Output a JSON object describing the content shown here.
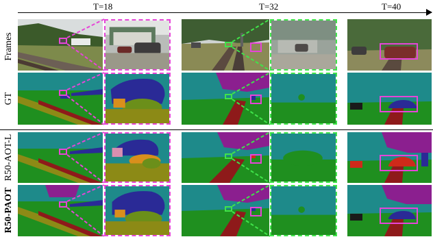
{
  "timesteps": [
    {
      "label": "T=18"
    },
    {
      "label": "T=32"
    },
    {
      "label": "T=40"
    }
  ],
  "rows": [
    {
      "label": "Frames",
      "bold": false
    },
    {
      "label": "GT",
      "bold": false
    },
    {
      "label": "R50-AOT-L",
      "bold": false
    },
    {
      "label": "R50-PAOT",
      "bold": true
    }
  ],
  "colors": {
    "sky_seg": "#1e8a8a",
    "ground_seg": "#1f8f1f",
    "tree_seg": "#8b1f8f",
    "road_seg": "#8e1a1a",
    "car_seg": "#2a2a96",
    "car_red_seg": "#cf2a1a",
    "person_seg": "#d98f1c",
    "olive_seg": "#8c8a16",
    "highlight_magenta": "#e645d8",
    "highlight_green": "#40e44a"
  }
}
